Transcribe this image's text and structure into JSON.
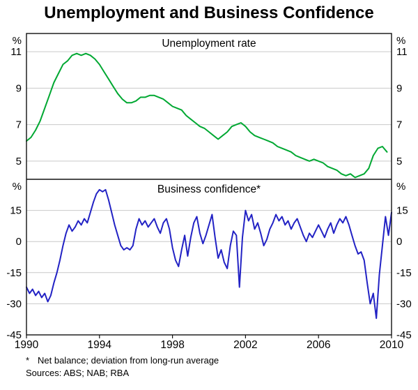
{
  "header": {
    "title": "Unemployment and Business Confidence"
  },
  "footnotes": {
    "star": "*",
    "note": "Net balance; deviation from long-run average",
    "sources": "Sources: ABS; NAB; RBA"
  },
  "chart_data": {
    "type": "line",
    "title": "Unemployment and Business Confidence",
    "xlabel": "",
    "xlim": [
      1990,
      2010
    ],
    "xticks": [
      1990,
      1994,
      1998,
      2002,
      2006,
      2010
    ],
    "grid": true,
    "legend_position": "none",
    "panels": [
      {
        "label": "Unemployment rate",
        "unit": "%",
        "ylim": [
          4,
          12
        ],
        "yticks": [
          11,
          9,
          7,
          5
        ],
        "series": [
          {
            "name": "Unemployment rate (per cent)",
            "color": "#00a832",
            "x_start": 1990,
            "x_step": 0.25,
            "values": [
              6.1,
              6.3,
              6.7,
              7.2,
              7.9,
              8.6,
              9.3,
              9.8,
              10.3,
              10.5,
              10.8,
              10.9,
              10.8,
              10.9,
              10.8,
              10.6,
              10.3,
              9.9,
              9.5,
              9.1,
              8.7,
              8.4,
              8.2,
              8.2,
              8.3,
              8.5,
              8.5,
              8.6,
              8.6,
              8.5,
              8.4,
              8.2,
              8.0,
              7.9,
              7.8,
              7.5,
              7.3,
              7.1,
              6.9,
              6.8,
              6.6,
              6.4,
              6.2,
              6.4,
              6.6,
              6.9,
              7.0,
              7.1,
              6.9,
              6.6,
              6.4,
              6.3,
              6.2,
              6.1,
              6.0,
              5.8,
              5.7,
              5.6,
              5.5,
              5.3,
              5.2,
              5.1,
              5.0,
              5.1,
              5.0,
              4.9,
              4.7,
              4.6,
              4.5,
              4.3,
              4.2,
              4.3,
              4.1,
              4.2,
              4.3,
              4.6,
              5.3,
              5.7,
              5.8,
              5.5
            ]
          }
        ]
      },
      {
        "label": "Business confidence*",
        "unit": "%",
        "ylim": [
          -45,
          30
        ],
        "yticks": [
          15,
          0,
          -15,
          -30,
          -45
        ],
        "series": [
          {
            "name": "Business confidence (net balance; deviation from long-run average)",
            "color": "#2222c4",
            "x_start": 1990,
            "x_step": 0.166667,
            "values": [
              -22,
              -25,
              -23,
              -26,
              -24,
              -27,
              -25,
              -29,
              -26,
              -20,
              -15,
              -9,
              -2,
              4,
              8,
              5,
              7,
              10,
              8,
              11,
              9,
              14,
              19,
              23,
              25,
              24,
              25,
              20,
              14,
              8,
              3,
              -2,
              -4,
              -3,
              -4,
              -2,
              6,
              11,
              8,
              10,
              7,
              9,
              11,
              7,
              4,
              9,
              11,
              6,
              -3,
              -9,
              -12,
              -4,
              3,
              -7,
              2,
              9,
              12,
              4,
              -1,
              3,
              8,
              13,
              2,
              -8,
              -4,
              -10,
              -13,
              -2,
              5,
              3,
              -22,
              2,
              15,
              10,
              13,
              6,
              9,
              4,
              -2,
              1,
              6,
              9,
              13,
              10,
              12,
              8,
              10,
              6,
              9,
              11,
              7,
              3,
              0,
              4,
              2,
              5,
              8,
              5,
              2,
              6,
              9,
              4,
              8,
              11,
              9,
              12,
              8,
              3,
              -2,
              -6,
              -5,
              -9,
              -20,
              -30,
              -25,
              -37,
              -16,
              -2,
              12,
              3,
              14
            ]
          }
        ]
      }
    ]
  }
}
